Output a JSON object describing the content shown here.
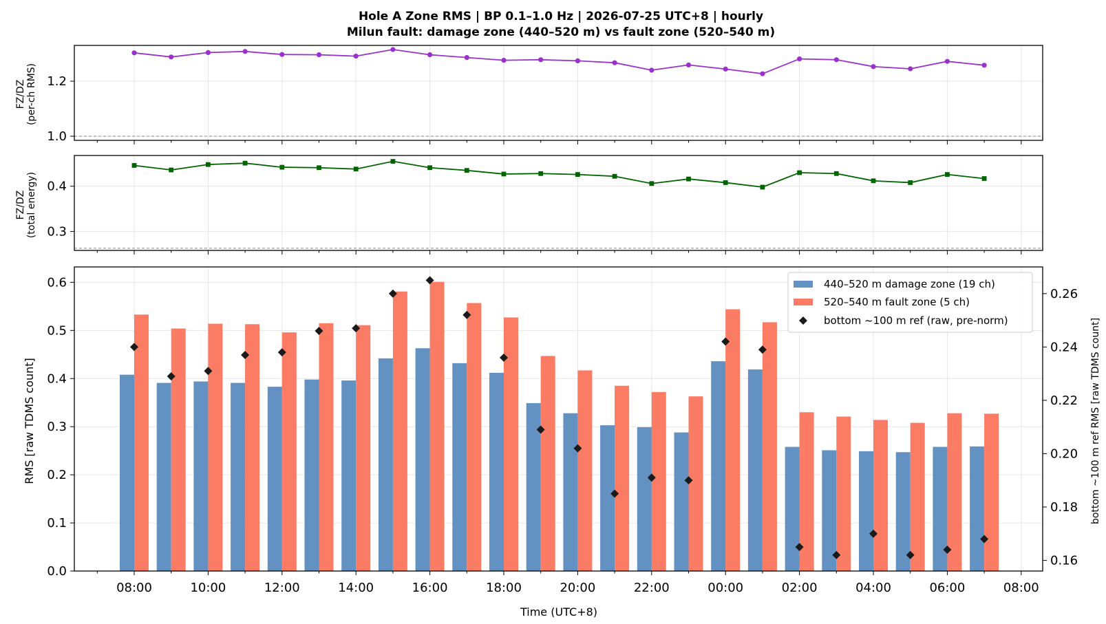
{
  "title_line1": "Hole A Zone RMS  |  BP 0.1–1.0 Hz  |  2026-07-25 UTC+8  |  hourly",
  "title_line2": "Milun fault: damage zone (440–520 m) vs fault zone (520–540 m)",
  "colors": {
    "damage_zone": "#6391c1",
    "fault_zone": "#fb7c64",
    "reference": "#1a1a1a",
    "ratio_per_ch": "#9932cc",
    "ratio_energy": "#006400",
    "grid": "#e6e6e6",
    "refline": "#888888"
  },
  "chart_data": [
    {
      "type": "line",
      "ylabel_line1": "FZ/DZ",
      "ylabel_line2": "(per-ch RMS)",
      "ylim": [
        0.985,
        1.33
      ],
      "yticks": [
        "1.0",
        "1.2"
      ],
      "hline": 1.0,
      "marker": "circle",
      "values": [
        1.303,
        1.288,
        1.304,
        1.308,
        1.297,
        1.296,
        1.291,
        1.315,
        1.296,
        1.286,
        1.276,
        1.278,
        1.274,
        1.267,
        1.24,
        1.259,
        1.244,
        1.227,
        1.281,
        1.278,
        1.253,
        1.245,
        1.272,
        1.258
      ]
    },
    {
      "type": "line",
      "ylabel_line1": "FZ/DZ",
      "ylabel_line2": "(total energy)",
      "ylim": [
        0.258,
        0.468
      ],
      "yticks": [
        "0.3",
        "0.4"
      ],
      "hline": 0.263,
      "marker": "square",
      "values": [
        0.446,
        0.436,
        0.448,
        0.451,
        0.442,
        0.441,
        0.438,
        0.455,
        0.441,
        0.435,
        0.427,
        0.428,
        0.426,
        0.422,
        0.406,
        0.416,
        0.408,
        0.398,
        0.43,
        0.428,
        0.412,
        0.408,
        0.426,
        0.417
      ]
    },
    {
      "type": "bar",
      "xlabel": "Time (UTC+8)",
      "ylabel": "RMS  [raw TDMS count]",
      "ylabel_right": "bottom ~100 m ref RMS  [raw TDMS count]",
      "ylim": [
        0,
        0.632
      ],
      "ylim_right": [
        0.156,
        0.27
      ],
      "yticks": [
        "0.0",
        "0.1",
        "0.2",
        "0.3",
        "0.4",
        "0.5",
        "0.6"
      ],
      "yticks_right": [
        "0.16",
        "0.18",
        "0.20",
        "0.22",
        "0.24",
        "0.26"
      ],
      "xticks": [
        "08:00",
        "10:00",
        "12:00",
        "14:00",
        "16:00",
        "18:00",
        "20:00",
        "22:00",
        "00:00",
        "02:00",
        "04:00",
        "06:00",
        "08:00"
      ],
      "grid": true,
      "legend_position": "upper right",
      "series": [
        {
          "name": "440–520 m  damage zone (19 ch)",
          "values": [
            0.408,
            0.391,
            0.394,
            0.391,
            0.383,
            0.398,
            0.396,
            0.442,
            0.463,
            0.432,
            0.412,
            0.349,
            0.328,
            0.303,
            0.299,
            0.288,
            0.436,
            0.419,
            0.258,
            0.251,
            0.249,
            0.247,
            0.258,
            0.259
          ]
        },
        {
          "name": "520–540 m  fault zone (5 ch)",
          "values": [
            0.533,
            0.504,
            0.514,
            0.513,
            0.496,
            0.515,
            0.511,
            0.581,
            0.601,
            0.557,
            0.527,
            0.447,
            0.417,
            0.385,
            0.372,
            0.363,
            0.544,
            0.517,
            0.33,
            0.321,
            0.314,
            0.308,
            0.328,
            0.327
          ]
        },
        {
          "name": "bottom ~100 m ref (raw, pre-norm)",
          "axis": "right",
          "values": [
            0.24,
            0.229,
            0.231,
            0.237,
            0.238,
            0.246,
            0.247,
            0.26,
            0.265,
            0.252,
            0.236,
            0.209,
            0.202,
            0.185,
            0.191,
            0.19,
            0.242,
            0.239,
            0.165,
            0.162,
            0.17,
            0.162,
            0.164,
            0.168
          ]
        }
      ]
    }
  ]
}
